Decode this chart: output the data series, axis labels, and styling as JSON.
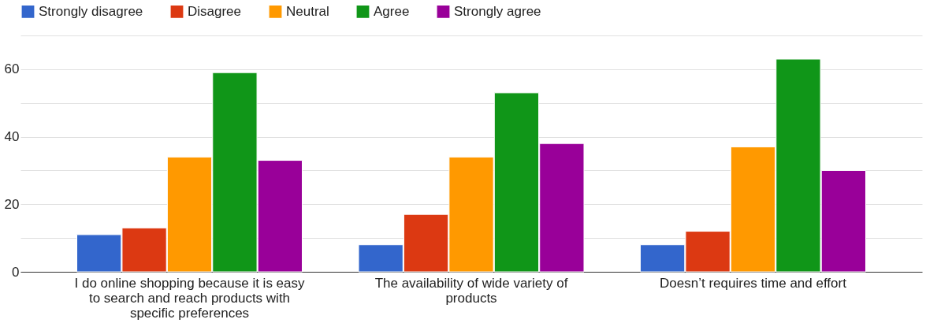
{
  "chart_data": {
    "type": "bar",
    "categories": [
      "I do online shopping because it is easy to search and reach products with specific preferences",
      "The availability of wide variety of products",
      "Doesn’t requires time and effort"
    ],
    "series": [
      {
        "name": "Strongly disagree",
        "color": "#3366cc",
        "values": [
          11,
          8,
          8
        ]
      },
      {
        "name": "Disagree",
        "color": "#dc3912",
        "values": [
          13,
          17,
          12
        ]
      },
      {
        "name": "Neutral",
        "color": "#ff9900",
        "values": [
          34,
          34,
          37
        ]
      },
      {
        "name": "Agree",
        "color": "#109618",
        "values": [
          59,
          53,
          63
        ]
      },
      {
        "name": "Strongly agree",
        "color": "#990099",
        "values": [
          33,
          38,
          30
        ]
      }
    ],
    "ylim": [
      0,
      70
    ],
    "yticks": [
      0,
      {
        "value": 10,
        "label": null
      },
      20,
      {
        "value": 30,
        "label": null
      },
      40,
      {
        "value": 50,
        "label": null
      },
      60,
      {
        "value": 70,
        "label": null
      }
    ],
    "grid": true,
    "legend": "top left"
  }
}
